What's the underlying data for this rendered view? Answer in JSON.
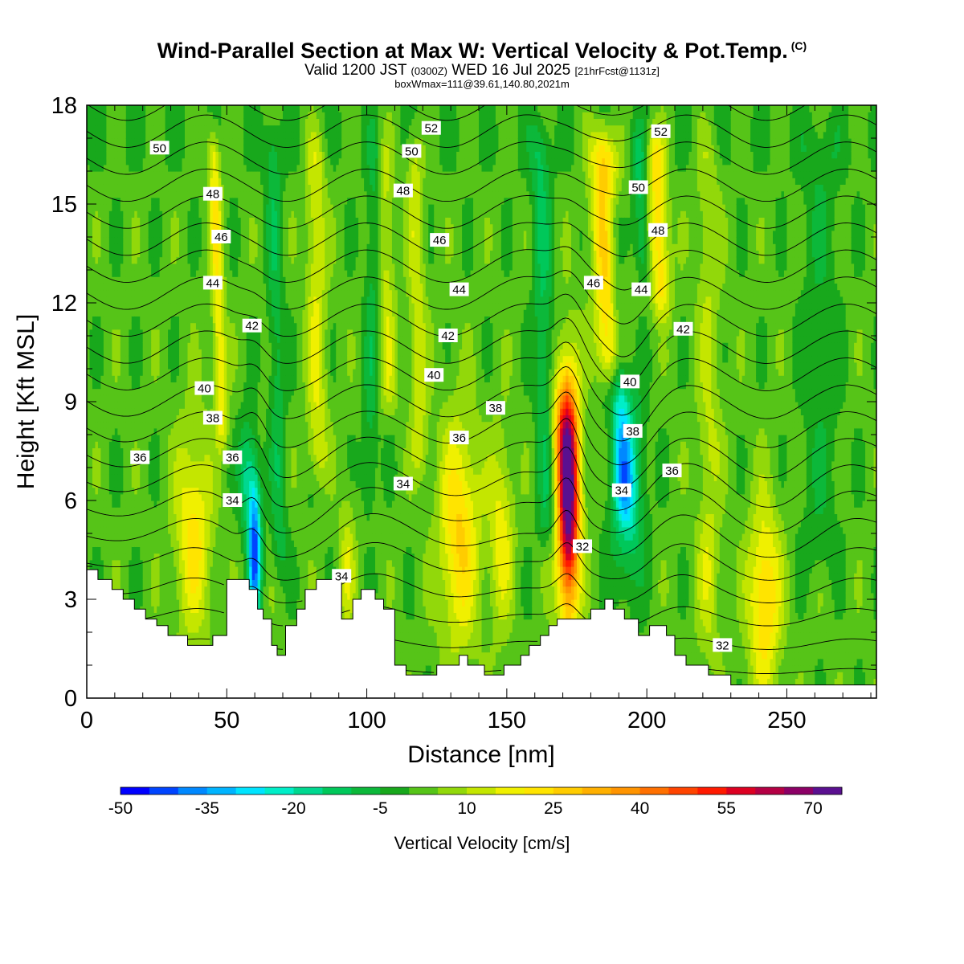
{
  "title": {
    "main": "Wind-Parallel Section at Max W: Vertical Velocity & Pot.Temp.",
    "copyright": "(C)",
    "valid_prefix": "Valid 1200 JST",
    "valid_utc": "(0300Z)",
    "valid_date": "WED 16 Jul 2025",
    "forecast_info": "[21hrFcst@1131z]",
    "box_info": "boxWmax=111@39.61,140.80,2021m"
  },
  "chart_data": {
    "type": "heatmap",
    "xlabel": "Distance [nm]",
    "ylabel": "Height [Kft MSL]",
    "xlim": [
      0,
      282
    ],
    "ylim": [
      0,
      18
    ],
    "x_ticks": [
      0,
      50,
      100,
      150,
      200,
      250
    ],
    "y_ticks": [
      0,
      3,
      6,
      9,
      12,
      15,
      18
    ],
    "colorbar": {
      "label": "Vertical Velocity [cm/s]",
      "tick_labels": [
        "-50",
        "-35",
        "-20",
        "-5",
        "10",
        "25",
        "40",
        "55",
        "70"
      ],
      "tick_values": [
        -50,
        -35,
        -20,
        -5,
        10,
        25,
        40,
        55,
        70
      ],
      "levels": [
        -50,
        -45,
        -40,
        -35,
        -30,
        -25,
        -20,
        -15,
        -10,
        -5,
        0,
        5,
        10,
        15,
        20,
        25,
        30,
        35,
        40,
        45,
        50,
        55,
        60,
        65,
        70,
        75
      ],
      "colors": [
        "#0000ff",
        "#0044ff",
        "#0088ff",
        "#00b4ff",
        "#00e4ff",
        "#00eec8",
        "#00d890",
        "#00c85a",
        "#0cb83a",
        "#18a81c",
        "#56c418",
        "#92d80a",
        "#c4e600",
        "#f0f000",
        "#ffe400",
        "#ffcc00",
        "#ffb000",
        "#ff9400",
        "#ff7000",
        "#ff4400",
        "#ff1a00",
        "#dd0022",
        "#b40044",
        "#8c0066",
        "#5a1090"
      ]
    },
    "vertical_velocity_features": [
      {
        "x": 38,
        "z": 5,
        "w": 22,
        "note": "updraft"
      },
      {
        "x": 49,
        "z": 13,
        "w": 18,
        "note": "updraft"
      },
      {
        "x": 60,
        "z": 4.5,
        "w": -45,
        "note": "downdraft"
      },
      {
        "x": 82,
        "z": 12,
        "w": 14,
        "note": "updraft"
      },
      {
        "x": 93,
        "z": 4,
        "w": 12,
        "note": "updraft"
      },
      {
        "x": 107,
        "z": 12,
        "w": 12,
        "note": "updraft"
      },
      {
        "x": 118,
        "z": 11,
        "w": 12,
        "note": "updraft"
      },
      {
        "x": 133,
        "z": 5,
        "w": 25,
        "note": "updraft"
      },
      {
        "x": 148,
        "z": 5,
        "w": 18,
        "note": "updraft"
      },
      {
        "x": 172,
        "z": 6,
        "w": 75,
        "note": "max updraft"
      },
      {
        "x": 186,
        "z": 14,
        "w": 28,
        "note": "updraft"
      },
      {
        "x": 193,
        "z": 7,
        "w": -28,
        "note": "downdraft"
      },
      {
        "x": 204,
        "z": 16,
        "w": 22,
        "note": "updraft"
      },
      {
        "x": 222,
        "z": 4,
        "w": 12,
        "note": "updraft"
      },
      {
        "x": 242,
        "z": 3,
        "w": 25,
        "note": "updraft"
      }
    ],
    "potential_temperature_contours": {
      "levels": [
        32,
        33,
        34,
        35,
        36,
        37,
        38,
        39,
        40,
        41,
        42,
        43,
        44,
        45,
        46,
        47,
        48,
        49,
        50,
        51,
        52,
        53
      ],
      "labeled_values": [
        32,
        34,
        36,
        38,
        40,
        42,
        44,
        46,
        48,
        50,
        52
      ]
    },
    "contour_labels": [
      {
        "text": "50",
        "x": 26,
        "z": 16.7
      },
      {
        "text": "48",
        "x": 45,
        "z": 15.3
      },
      {
        "text": "46",
        "x": 48,
        "z": 14.0
      },
      {
        "text": "44",
        "x": 45,
        "z": 12.6
      },
      {
        "text": "42",
        "x": 59,
        "z": 11.3
      },
      {
        "text": "40",
        "x": 42,
        "z": 9.4
      },
      {
        "text": "38",
        "x": 45,
        "z": 8.5
      },
      {
        "text": "36",
        "x": 19,
        "z": 7.3
      },
      {
        "text": "36",
        "x": 52,
        "z": 7.3
      },
      {
        "text": "34",
        "x": 52,
        "z": 6.0
      },
      {
        "text": "34",
        "x": 91,
        "z": 3.7
      },
      {
        "text": "34",
        "x": 113,
        "z": 6.5
      },
      {
        "text": "52",
        "x": 123,
        "z": 17.3
      },
      {
        "text": "50",
        "x": 116,
        "z": 16.6
      },
      {
        "text": "48",
        "x": 113,
        "z": 15.4
      },
      {
        "text": "46",
        "x": 126,
        "z": 13.9
      },
      {
        "text": "44",
        "x": 133,
        "z": 12.4
      },
      {
        "text": "42",
        "x": 129,
        "z": 11.0
      },
      {
        "text": "40",
        "x": 124,
        "z": 9.8
      },
      {
        "text": "38",
        "x": 146,
        "z": 8.8
      },
      {
        "text": "36",
        "x": 133,
        "z": 7.9
      },
      {
        "text": "32",
        "x": 177,
        "z": 4.6
      },
      {
        "text": "34",
        "x": 191,
        "z": 6.3
      },
      {
        "text": "38",
        "x": 195,
        "z": 8.1
      },
      {
        "text": "40",
        "x": 194,
        "z": 9.6
      },
      {
        "text": "46",
        "x": 181,
        "z": 12.6
      },
      {
        "text": "44",
        "x": 198,
        "z": 12.4
      },
      {
        "text": "48",
        "x": 204,
        "z": 14.2
      },
      {
        "text": "50",
        "x": 197,
        "z": 15.5
      },
      {
        "text": "52",
        "x": 205,
        "z": 17.2
      },
      {
        "text": "42",
        "x": 213,
        "z": 11.2
      },
      {
        "text": "36",
        "x": 209,
        "z": 6.9
      },
      {
        "text": "32",
        "x": 227,
        "z": 1.6
      }
    ],
    "terrain_kft": [
      [
        0,
        3.9
      ],
      [
        4,
        3.9
      ],
      [
        4,
        3.6
      ],
      [
        9,
        3.6
      ],
      [
        9,
        3.3
      ],
      [
        13,
        3.3
      ],
      [
        13,
        3.0
      ],
      [
        17,
        3.0
      ],
      [
        17,
        2.7
      ],
      [
        21,
        2.7
      ],
      [
        21,
        2.4
      ],
      [
        25,
        2.4
      ],
      [
        25,
        2.2
      ],
      [
        29,
        2.2
      ],
      [
        29,
        1.9
      ],
      [
        36,
        1.9
      ],
      [
        36,
        1.6
      ],
      [
        45,
        1.6
      ],
      [
        45,
        1.9
      ],
      [
        50,
        1.9
      ],
      [
        50,
        3.6
      ],
      [
        58,
        3.6
      ],
      [
        58,
        3.3
      ],
      [
        61,
        3.3
      ],
      [
        61,
        2.7
      ],
      [
        63,
        2.7
      ],
      [
        63,
        2.4
      ],
      [
        66,
        2.4
      ],
      [
        66,
        1.6
      ],
      [
        68,
        1.6
      ],
      [
        68,
        1.3
      ],
      [
        71,
        1.3
      ],
      [
        71,
        2.2
      ],
      [
        75,
        2.2
      ],
      [
        75,
        2.7
      ],
      [
        78,
        2.7
      ],
      [
        78,
        3.3
      ],
      [
        82,
        3.3
      ],
      [
        82,
        3.6
      ],
      [
        91,
        3.6
      ],
      [
        91,
        2.4
      ],
      [
        95,
        2.4
      ],
      [
        95,
        3.0
      ],
      [
        98,
        3.0
      ],
      [
        98,
        3.3
      ],
      [
        103,
        3.3
      ],
      [
        103,
        3.0
      ],
      [
        106,
        3.0
      ],
      [
        106,
        2.7
      ],
      [
        110,
        2.7
      ],
      [
        110,
        1.0
      ],
      [
        114,
        1.0
      ],
      [
        114,
        0.7
      ],
      [
        125,
        0.7
      ],
      [
        125,
        1.0
      ],
      [
        133,
        1.0
      ],
      [
        133,
        1.3
      ],
      [
        136,
        1.3
      ],
      [
        136,
        1.0
      ],
      [
        142,
        1.0
      ],
      [
        142,
        0.7
      ],
      [
        149,
        0.7
      ],
      [
        149,
        1.0
      ],
      [
        155,
        1.0
      ],
      [
        155,
        1.3
      ],
      [
        158,
        1.3
      ],
      [
        158,
        1.6
      ],
      [
        162,
        1.6
      ],
      [
        162,
        1.9
      ],
      [
        165,
        1.9
      ],
      [
        165,
        2.2
      ],
      [
        168,
        2.2
      ],
      [
        168,
        2.4
      ],
      [
        180,
        2.4
      ],
      [
        180,
        2.7
      ],
      [
        185,
        2.7
      ],
      [
        185,
        3.0
      ],
      [
        188,
        3.0
      ],
      [
        188,
        2.7
      ],
      [
        192,
        2.7
      ],
      [
        192,
        2.4
      ],
      [
        197,
        2.4
      ],
      [
        197,
        1.9
      ],
      [
        201,
        1.9
      ],
      [
        201,
        2.2
      ],
      [
        207,
        2.2
      ],
      [
        207,
        1.9
      ],
      [
        210,
        1.9
      ],
      [
        210,
        1.3
      ],
      [
        214,
        1.3
      ],
      [
        214,
        1.0
      ],
      [
        222,
        1.0
      ],
      [
        222,
        0.7
      ],
      [
        230,
        0.7
      ],
      [
        230,
        0.4
      ],
      [
        282,
        0.4
      ]
    ]
  }
}
